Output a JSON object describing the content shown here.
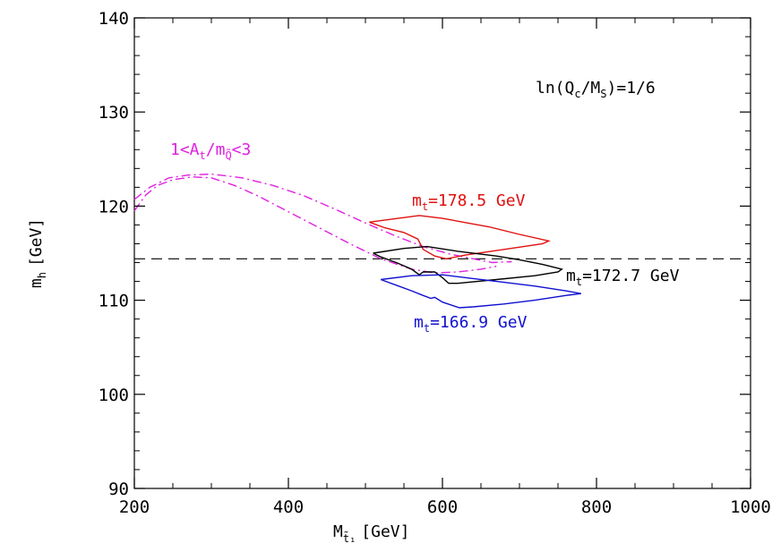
{
  "chart_data": {
    "type": "line",
    "title": "",
    "xlabel": "M",
    "xlabel_sub": "t̃₁",
    "xlabel_unit": "[GeV]",
    "ylabel": "m",
    "ylabel_sub": "h",
    "ylabel_unit": "[GeV]",
    "xlim": [
      200,
      1000
    ],
    "ylim": [
      90,
      140
    ],
    "x_ticks": [
      200,
      400,
      600,
      800,
      1000
    ],
    "y_ticks": [
      90,
      100,
      110,
      120,
      130,
      140
    ],
    "x_ticks_minor": [
      250,
      300,
      350,
      450,
      500,
      550,
      650,
      700,
      750,
      850,
      900,
      950
    ],
    "y_ticks_minor": [
      92,
      94,
      96,
      98,
      102,
      104,
      106,
      108,
      112,
      114,
      116,
      118,
      122,
      124,
      126,
      128,
      132,
      134,
      136,
      138
    ],
    "grid": false,
    "hline": {
      "y": 114.4,
      "style": "dashed",
      "color": "#000000"
    },
    "annotation_box": {
      "text": "ln(Q",
      "sub1": "c",
      "mid": "/M",
      "sub2": "S",
      "tail": ")=1/6"
    },
    "series": [
      {
        "name": "1<At/mQ<3",
        "label_parts": {
          "a": "1<A",
          "s1": "t",
          "b": "/m",
          "s2": "Q̃",
          "c": "<3"
        },
        "color": "#e020e0",
        "style": "dashdot",
        "paths": [
          [
            [
              200,
              119.5
            ],
            [
              215,
              121.2
            ],
            [
              230,
              122.2
            ],
            [
              250,
              122.8
            ],
            [
              275,
              123.1
            ],
            [
              300,
              123.0
            ],
            [
              330,
              122.2
            ],
            [
              360,
              121.1
            ],
            [
              400,
              119.4
            ],
            [
              440,
              117.7
            ],
            [
              480,
              116.0
            ],
            [
              520,
              114.4
            ],
            [
              560,
              113.3
            ],
            [
              590,
              112.9
            ],
            [
              620,
              113.0
            ],
            [
              650,
              113.3
            ],
            [
              670,
              113.6
            ]
          ],
          [
            [
              200,
              120.7
            ],
            [
              220,
              122.0
            ],
            [
              245,
              123.0
            ],
            [
              270,
              123.3
            ],
            [
              300,
              123.4
            ],
            [
              340,
              123.0
            ],
            [
              380,
              122.2
            ],
            [
              420,
              121.1
            ],
            [
              460,
              119.7
            ],
            [
              500,
              118.2
            ],
            [
              540,
              116.8
            ],
            [
              575,
              115.7
            ],
            [
              610,
              114.9
            ],
            [
              640,
              114.4
            ],
            [
              665,
              114.0
            ],
            [
              690,
              114.1
            ]
          ]
        ]
      },
      {
        "name": "mt=178.5 GeV",
        "label_parts": {
          "a": "m",
          "s1": "t",
          "b": "=178.5 GeV"
        },
        "color": "#e01010",
        "style": "solid",
        "paths": [
          [
            [
              505,
              118.3
            ],
            [
              570,
              119.0
            ],
            [
              600,
              118.7
            ],
            [
              660,
              117.8
            ],
            [
              700,
              117.0
            ],
            [
              738,
              116.3
            ],
            [
              730,
              116.0
            ],
            [
              680,
              115.4
            ],
            [
              630,
              114.8
            ],
            [
              605,
              114.4
            ],
            [
              590,
              114.7
            ],
            [
              575,
              115.4
            ],
            [
              568,
              116.5
            ],
            [
              550,
              117.2
            ],
            [
              525,
              117.7
            ],
            [
              505,
              118.3
            ]
          ]
        ]
      },
      {
        "name": "mt=172.7 GeV",
        "label_parts": {
          "a": "m",
          "s1": "t",
          "b": "=172.7 GeV"
        },
        "color": "#000000",
        "style": "solid",
        "paths": [
          [
            [
              510,
              115.0
            ],
            [
              550,
              115.5
            ],
            [
              580,
              115.7
            ],
            [
              620,
              115.2
            ],
            [
              670,
              114.7
            ],
            [
              700,
              114.3
            ],
            [
              730,
              113.8
            ],
            [
              755,
              113.3
            ],
            [
              750,
              113.0
            ],
            [
              720,
              112.6
            ],
            [
              670,
              112.2
            ],
            [
              620,
              111.8
            ],
            [
              608,
              111.8
            ],
            [
              600,
              112.4
            ],
            [
              590,
              113.0
            ],
            [
              575,
              113.0
            ],
            [
              570,
              112.7
            ],
            [
              560,
              113.3
            ],
            [
              540,
              114.0
            ],
            [
              520,
              114.6
            ],
            [
              510,
              115.0
            ]
          ]
        ]
      },
      {
        "name": "mt=166.9 GeV",
        "label_parts": {
          "a": "m",
          "s1": "t",
          "b": "=166.9 GeV"
        },
        "color": "#1010d0",
        "style": "solid",
        "paths": [
          [
            [
              520,
              112.2
            ],
            [
              560,
              112.6
            ],
            [
              600,
              112.7
            ],
            [
              640,
              112.3
            ],
            [
              680,
              111.9
            ],
            [
              720,
              111.5
            ],
            [
              760,
              111.0
            ],
            [
              780,
              110.7
            ],
            [
              760,
              110.5
            ],
            [
              720,
              110.0
            ],
            [
              680,
              109.6
            ],
            [
              640,
              109.3
            ],
            [
              622,
              109.2
            ],
            [
              600,
              109.8
            ],
            [
              590,
              110.3
            ],
            [
              585,
              110.2
            ],
            [
              575,
              110.5
            ],
            [
              560,
              111.0
            ],
            [
              540,
              111.6
            ],
            [
              520,
              112.2
            ]
          ]
        ]
      }
    ]
  }
}
